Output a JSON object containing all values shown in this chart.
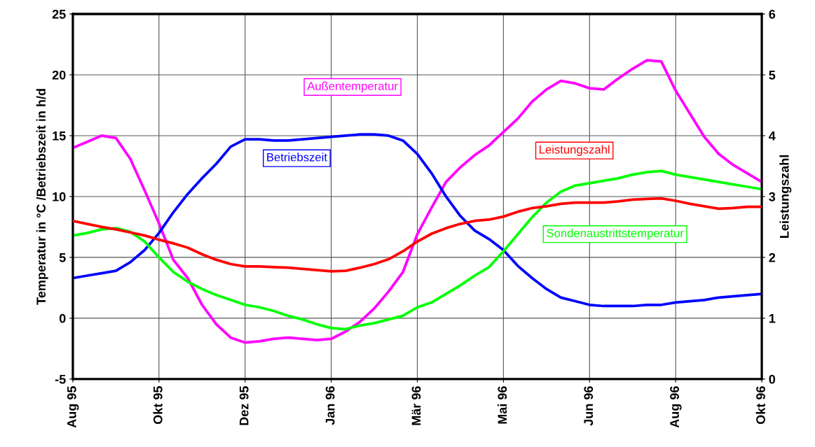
{
  "chart_data": {
    "type": "line",
    "ylabel": "Temperatur in °C /Betriebszeit in h/d",
    "y2label": "Leistungszahl",
    "categories": [
      "Aug 95",
      null,
      null,
      null,
      null,
      null,
      "Okt 95",
      null,
      null,
      null,
      null,
      null,
      "Dez 95",
      null,
      null,
      null,
      null,
      null,
      "Jan 96",
      null,
      null,
      null,
      null,
      null,
      "Mär 96",
      null,
      null,
      null,
      null,
      null,
      "Mai 96",
      null,
      null,
      null,
      null,
      null,
      "Jun 96",
      null,
      null,
      null,
      null,
      null,
      "Aug 96",
      null,
      null,
      null,
      null,
      null,
      "Okt 96"
    ],
    "ylim": [
      -5,
      25
    ],
    "yticks": [
      -5,
      0,
      5,
      10,
      15,
      20,
      25
    ],
    "y2lim": [
      0,
      6
    ],
    "y2ticks": [
      0,
      1,
      2,
      3,
      4,
      5,
      6
    ],
    "grid": true,
    "legend": false,
    "marker": "none",
    "line_style": "solid",
    "series": [
      {
        "name": "Außentemperatur",
        "color": "#ff00ff",
        "values": [
          14.0,
          14.5,
          15.0,
          14.8,
          13.1,
          10.5,
          7.8,
          4.8,
          3.3,
          1.1,
          -0.5,
          -1.6,
          -2.0,
          -1.9,
          -1.7,
          -1.6,
          -1.7,
          -1.8,
          -1.7,
          -1.1,
          -0.3,
          0.8,
          2.2,
          3.8,
          6.9,
          9.1,
          11.2,
          12.4,
          13.4,
          14.2,
          15.3,
          16.4,
          17.8,
          18.8,
          19.5,
          19.3,
          18.9,
          18.8,
          19.7,
          20.5,
          21.2,
          21.1,
          18.7,
          16.8,
          14.9,
          13.5,
          12.6,
          11.9,
          11.2
        ]
      },
      {
        "name": "Betriebszeit",
        "color": "#0000ff",
        "values": [
          3.3,
          3.5,
          3.7,
          3.9,
          4.6,
          5.6,
          7.0,
          8.7,
          10.2,
          11.5,
          12.7,
          14.1,
          14.7,
          14.7,
          14.6,
          14.6,
          14.7,
          14.8,
          14.9,
          15.0,
          15.1,
          15.1,
          15.0,
          14.6,
          13.5,
          11.9,
          10.0,
          8.4,
          7.2,
          6.5,
          5.6,
          4.3,
          3.3,
          2.4,
          1.7,
          1.4,
          1.1,
          1.0,
          1.0,
          1.0,
          1.1,
          1.1,
          1.3,
          1.4,
          1.5,
          1.7,
          1.8,
          1.9,
          2.0
        ]
      },
      {
        "name": "Leistungszahl",
        "color": "#ff0000",
        "axis": "y2",
        "values": [
          2.6,
          2.55,
          2.5,
          2.46,
          2.41,
          2.36,
          2.29,
          2.23,
          2.16,
          2.05,
          1.96,
          1.89,
          1.85,
          1.85,
          1.84,
          1.83,
          1.81,
          1.79,
          1.77,
          1.78,
          1.83,
          1.89,
          1.97,
          2.1,
          2.26,
          2.39,
          2.48,
          2.55,
          2.6,
          2.62,
          2.67,
          2.75,
          2.81,
          2.84,
          2.88,
          2.9,
          2.9,
          2.9,
          2.92,
          2.95,
          2.96,
          2.97,
          2.93,
          2.88,
          2.84,
          2.8,
          2.81,
          2.83,
          2.83
        ]
      },
      {
        "name": "Sondenaustrittstemperatur",
        "color": "#00ff00",
        "values": [
          6.8,
          7.0,
          7.3,
          7.4,
          7.1,
          6.3,
          5.0,
          3.8,
          3.0,
          2.4,
          1.9,
          1.5,
          1.1,
          0.9,
          0.6,
          0.2,
          -0.1,
          -0.5,
          -0.8,
          -0.9,
          -0.6,
          -0.4,
          -0.1,
          0.2,
          0.9,
          1.3,
          2.0,
          2.7,
          3.5,
          4.2,
          5.5,
          6.9,
          8.3,
          9.5,
          10.4,
          10.9,
          11.1,
          11.3,
          11.5,
          11.8,
          12.0,
          12.1,
          11.8,
          11.6,
          11.4,
          11.2,
          11.0,
          10.8,
          10.6
        ]
      }
    ]
  }
}
